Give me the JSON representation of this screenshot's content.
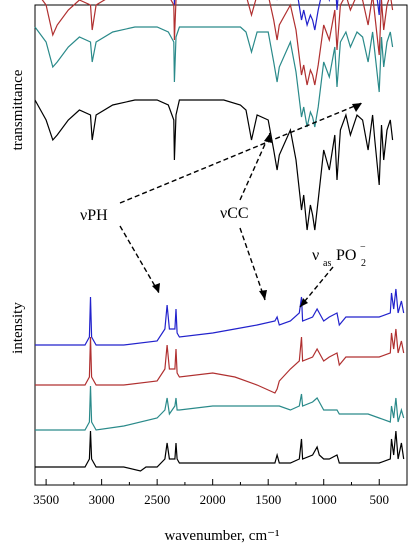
{
  "chart_data": {
    "type": "line",
    "panels": [
      {
        "name": "top",
        "ylabel": "transmittance",
        "series": [
          {
            "color": "#2222cc",
            "x": [
              3600,
              3500,
              3440,
              3400,
              3300,
              3200,
              3100,
              3085,
              3050,
              2900,
              2700,
              2500,
              2400,
              2350,
              2345,
              2330,
              2300,
              2100,
              1900,
              1750,
              1700,
              1650,
              1600,
              1500,
              1450,
              1420,
              1400,
              1300,
              1250,
              1200,
              1180,
              1150,
              1120,
              1100,
              1080,
              1050,
              1000,
              950,
              900,
              880,
              850,
              800,
              760,
              700,
              650,
              600,
              560,
              540,
              500,
              480,
              460,
              430,
              400,
              380
            ],
            "y": [
              15,
              12,
              7,
              8,
              11,
              13,
              12,
              7,
              12,
              14,
              15,
              15,
              14,
              13,
              5,
              13,
              15,
              15,
              15,
              15,
              14,
              11,
              14,
              14,
              9,
              6,
              8,
              12,
              9,
              2,
              4,
              1,
              3,
              2,
              0,
              4,
              9,
              6,
              11,
              4,
              12,
              14,
              11,
              14,
              13,
              8,
              14,
              10,
              3,
              13,
              7,
              12,
              14,
              11
            ]
          },
          {
            "color": "#b03030",
            "x": [
              3600,
              3500,
              3440,
              3400,
              3300,
              3200,
              3100,
              3085,
              3050,
              2900,
              2700,
              2500,
              2400,
              2350,
              2345,
              2330,
              2300,
              2100,
              1900,
              1750,
              1700,
              1650,
              1600,
              1500,
              1450,
              1420,
              1400,
              1300,
              1250,
              1200,
              1180,
              1150,
              1120,
              1100,
              1080,
              1050,
              1000,
              950,
              900,
              880,
              850,
              800,
              760,
              700,
              650,
              600,
              560,
              540,
              500,
              480,
              460,
              430,
              400,
              380
            ],
            "y": [
              11,
              8,
              2,
              4,
              7,
              9,
              8,
              3,
              8,
              10,
              11,
              11,
              10,
              8,
              1,
              9,
              11,
              11,
              11,
              11,
              10,
              6,
              10,
              10,
              5,
              1,
              4,
              8,
              3,
              -6,
              -4,
              -8,
              -5,
              -6,
              -8,
              -4,
              4,
              1,
              7,
              -1,
              8,
              10,
              7,
              10,
              9,
              4,
              10,
              6,
              -2,
              9,
              3,
              8,
              10,
              7
            ]
          },
          {
            "color": "#2a8a8a",
            "x": [
              3600,
              3500,
              3440,
              3400,
              3300,
              3200,
              3100,
              3085,
              3050,
              2900,
              2700,
              2500,
              2400,
              2350,
              2345,
              2330,
              2300,
              2100,
              1900,
              1750,
              1700,
              1650,
              1600,
              1500,
              1450,
              1420,
              1400,
              1300,
              1250,
              1200,
              1180,
              1150,
              1120,
              1100,
              1080,
              1050,
              1000,
              950,
              900,
              880,
              850,
              800,
              760,
              700,
              650,
              600,
              560,
              540,
              500,
              480,
              460,
              430,
              400,
              380
            ],
            "y": [
              7,
              4,
              -1,
              0,
              3,
              5,
              4,
              0,
              4,
              6,
              7,
              7,
              6,
              4,
              -4,
              5,
              7,
              7,
              7,
              7,
              6,
              2,
              6,
              6,
              0,
              -4,
              -1,
              4,
              -2,
              -11,
              -9,
              -13,
              -10,
              -11,
              -13,
              -9,
              0,
              -3,
              3,
              -5,
              4,
              6,
              3,
              6,
              5,
              0,
              6,
              2,
              -6,
              5,
              -1,
              4,
              6,
              3
            ]
          },
          {
            "color": "#000000",
            "x": [
              3600,
              3500,
              3440,
              3400,
              3300,
              3200,
              3100,
              3085,
              3050,
              2900,
              2700,
              2500,
              2400,
              2350,
              2345,
              2330,
              2300,
              2100,
              1900,
              1750,
              1700,
              1650,
              1600,
              1500,
              1450,
              1420,
              1400,
              1300,
              1250,
              1200,
              1180,
              1150,
              1120,
              1100,
              1080,
              1050,
              1000,
              950,
              900,
              880,
              850,
              800,
              760,
              700,
              650,
              600,
              560,
              540,
              500,
              480,
              460,
              430,
              400,
              380
            ],
            "y": [
              0,
              -4,
              -8,
              -7,
              -4,
              -2,
              -3,
              -8,
              -3,
              -1,
              0,
              0,
              -1,
              -4,
              -12,
              -3,
              0,
              0,
              0,
              -1,
              -2,
              -8,
              -3,
              -4,
              -10,
              -14,
              -11,
              -6,
              -12,
              -22,
              -19,
              -26,
              -21,
              -23,
              -26,
              -20,
              -10,
              -14,
              -7,
              -16,
              -6,
              -3,
              -7,
              -3,
              -4,
              -10,
              -3,
              -8,
              -17,
              -5,
              -12,
              -6,
              -4,
              -8
            ]
          }
        ]
      },
      {
        "name": "bottom",
        "ylabel": "intensity",
        "series": [
          {
            "color": "#2222cc",
            "x": [
              3600,
              3150,
              3110,
              3100,
              3090,
              3050,
              2800,
              2500,
              2430,
              2410,
              2390,
              2340,
              2330,
              2320,
              2300,
              2000,
              1800,
              1600,
              1440,
              1420,
              1400,
              1300,
              1220,
              1200,
              1190,
              1100,
              1060,
              1040,
              1000,
              950,
              880,
              860,
              800,
              700,
              600,
              500,
              400,
              390,
              370,
              350,
              330,
              300,
              280
            ],
            "y": [
              0,
              0,
              2,
              12,
              2,
              0,
              0,
              1,
              4,
              10,
              4,
              4,
              9,
              3,
              2,
              3,
              4,
              5,
              6,
              7,
              5,
              6,
              8,
              12,
              6,
              7,
              9,
              8,
              6,
              7,
              8,
              5,
              7,
              7,
              7,
              7,
              8,
              13,
              9,
              14,
              8,
              11,
              8
            ]
          },
          {
            "color": "#b03030",
            "x": [
              3600,
              3150,
              3110,
              3100,
              3090,
              3050,
              2800,
              2500,
              2430,
              2410,
              2390,
              2340,
              2330,
              2320,
              2300,
              2000,
              1800,
              1600,
              1440,
              1420,
              1400,
              1300,
              1220,
              1200,
              1190,
              1100,
              1060,
              1040,
              1000,
              950,
              880,
              860,
              800,
              700,
              600,
              500,
              400,
              390,
              370,
              350,
              330,
              300,
              280
            ],
            "y": [
              0,
              0,
              2,
              12,
              2,
              0,
              0,
              1,
              4,
              10,
              4,
              4,
              9,
              3,
              2,
              3,
              2,
              0,
              -2,
              -1,
              1,
              4,
              6,
              12,
              6,
              7,
              9,
              8,
              6,
              7,
              8,
              5,
              7,
              7,
              7,
              7,
              8,
              13,
              9,
              14,
              8,
              11,
              8
            ]
          },
          {
            "color": "#2a8a8a",
            "x": [
              3600,
              3150,
              3110,
              3100,
              3090,
              3050,
              2800,
              2500,
              2430,
              2410,
              2390,
              2340,
              2330,
              2320,
              2300,
              2000,
              1800,
              1600,
              1440,
              1420,
              1400,
              1300,
              1220,
              1200,
              1190,
              1100,
              1060,
              1040,
              1000,
              950,
              880,
              860,
              800,
              700,
              600,
              500,
              400,
              390,
              370,
              350,
              330,
              300,
              280
            ],
            "y": [
              0,
              0,
              2,
              11,
              2,
              0,
              1,
              3,
              5,
              8,
              4,
              6,
              8,
              5,
              5,
              6,
              6,
              6,
              6,
              6,
              6,
              5,
              6,
              9,
              6,
              7,
              8,
              7,
              5,
              5,
              5,
              4,
              4,
              4,
              4,
              3,
              2,
              6,
              3,
              8,
              2,
              5,
              3
            ]
          },
          {
            "color": "#000000",
            "x": [
              3600,
              3150,
              3110,
              3100,
              3090,
              3050,
              2800,
              2650,
              2600,
              2500,
              2430,
              2410,
              2390,
              2340,
              2330,
              2320,
              2300,
              2000,
              1800,
              1600,
              1440,
              1420,
              1400,
              1300,
              1220,
              1200,
              1190,
              1100,
              1060,
              1040,
              1000,
              950,
              880,
              860,
              800,
              700,
              600,
              500,
              400,
              390,
              370,
              350,
              330,
              300,
              280
            ],
            "y": [
              0,
              0,
              2,
              9,
              2,
              0,
              0,
              -1,
              0,
              0,
              2,
              6,
              2,
              2,
              6,
              2,
              1,
              1,
              1,
              1,
              1,
              3,
              1,
              1,
              2,
              7,
              2,
              3,
              5,
              3,
              2,
              2,
              3,
              1,
              1,
              1,
              1,
              1,
              2,
              7,
              3,
              9,
              2,
              6,
              2
            ]
          }
        ]
      }
    ],
    "xlabel": "wavenumber, cm⁻¹",
    "x_ticks": [
      "3500",
      "3000",
      "2500",
      "2000",
      "1500",
      "1000",
      "500"
    ],
    "xlim": [
      3600,
      250
    ],
    "x_reversed": true,
    "annotations": [
      "νPH",
      "νCC",
      "ν",
      "as",
      "PO",
      "2",
      "−"
    ],
    "grid": false,
    "legend": "none"
  }
}
